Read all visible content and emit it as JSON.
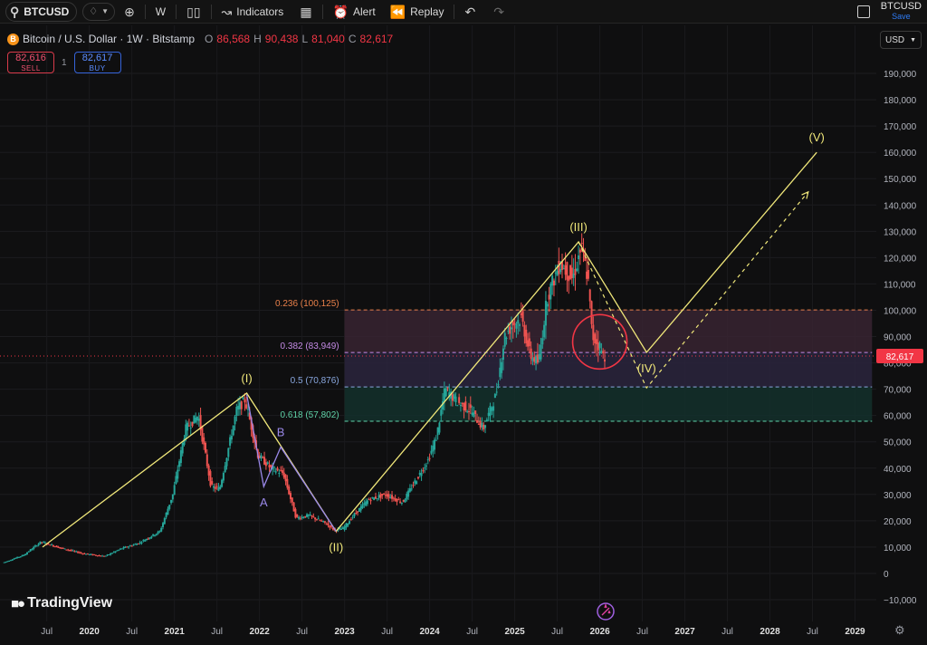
{
  "toolbar": {
    "symbol": "BTCUSD",
    "interval": "W",
    "indicators_label": "Indicators",
    "alert_label": "Alert",
    "replay_label": "Replay",
    "layout_name": "BTCUSD",
    "save_label": "Save"
  },
  "legend": {
    "title": "Bitcoin / U.S. Dollar · 1W · Bitstamp",
    "o_key": "O",
    "o_val": "86,568",
    "h_key": "H",
    "h_val": "90,438",
    "l_key": "L",
    "l_val": "81,040",
    "c_key": "C",
    "c_val": "82,617"
  },
  "trade": {
    "sell_price": "82,616",
    "sell_label": "SELL",
    "qty": "1",
    "buy_price": "82,617",
    "buy_label": "BUY"
  },
  "currency": "USD",
  "watermark": "TradingView",
  "colors": {
    "up": "#26a69a",
    "down": "#ef5350",
    "wave": "#f0e77a",
    "last_price": "#f23645",
    "background": "#0f0f10"
  },
  "chart_data": {
    "type": "candlestick",
    "symbol": "BTCUSD",
    "interval": "1W",
    "ylim": [
      -10000,
      200000
    ],
    "y_ticks": [
      -10000,
      0,
      10000,
      20000,
      30000,
      40000,
      50000,
      60000,
      70000,
      80000,
      90000,
      100000,
      110000,
      120000,
      130000,
      140000,
      150000,
      160000,
      170000,
      180000,
      190000
    ],
    "y_tick_labels": [
      "−10,000",
      "0",
      "10,000",
      "20,000",
      "30,000",
      "40,000",
      "50,000",
      "60,000",
      "70,000",
      "80,000",
      "90,000",
      "100,000",
      "110,000",
      "120,000",
      "130,000",
      "140,000",
      "150,000",
      "160,000",
      "170,000",
      "180,000",
      "190,000"
    ],
    "x_ticks": [
      {
        "t": 2019.5,
        "label": "Jul",
        "year": false
      },
      {
        "t": 2020.0,
        "label": "2020",
        "year": true
      },
      {
        "t": 2020.5,
        "label": "Jul",
        "year": false
      },
      {
        "t": 2021.0,
        "label": "2021",
        "year": true
      },
      {
        "t": 2021.5,
        "label": "Jul",
        "year": false
      },
      {
        "t": 2022.0,
        "label": "2022",
        "year": true
      },
      {
        "t": 2022.5,
        "label": "Jul",
        "year": false
      },
      {
        "t": 2023.0,
        "label": "2023",
        "year": true
      },
      {
        "t": 2023.5,
        "label": "Jul",
        "year": false
      },
      {
        "t": 2024.0,
        "label": "2024",
        "year": true
      },
      {
        "t": 2024.5,
        "label": "Jul",
        "year": false
      },
      {
        "t": 2025.0,
        "label": "2025",
        "year": true
      },
      {
        "t": 2025.5,
        "label": "Jul",
        "year": false
      },
      {
        "t": 2026.0,
        "label": "2026",
        "year": true
      },
      {
        "t": 2026.5,
        "label": "Jul",
        "year": false
      },
      {
        "t": 2027.0,
        "label": "2027",
        "year": true
      },
      {
        "t": 2027.5,
        "label": "Jul",
        "year": false
      },
      {
        "t": 2028.0,
        "label": "2028",
        "year": true
      },
      {
        "t": 2028.5,
        "label": "Jul",
        "year": false
      },
      {
        "t": 2029.0,
        "label": "2029",
        "year": true
      }
    ],
    "last_price": 82617,
    "last_price_label": "82,617",
    "price_path": [
      [
        2019.0,
        4000
      ],
      [
        2019.25,
        7000
      ],
      [
        2019.45,
        12000
      ],
      [
        2019.7,
        9500
      ],
      [
        2019.95,
        7500
      ],
      [
        2020.2,
        6500
      ],
      [
        2020.4,
        9500
      ],
      [
        2020.6,
        11500
      ],
      [
        2020.85,
        16000
      ],
      [
        2021.0,
        30000
      ],
      [
        2021.15,
        55000
      ],
      [
        2021.3,
        60000
      ],
      [
        2021.45,
        33000
      ],
      [
        2021.55,
        32000
      ],
      [
        2021.75,
        62000
      ],
      [
        2021.85,
        66000
      ],
      [
        2022.0,
        45000
      ],
      [
        2022.15,
        40000
      ],
      [
        2022.3,
        38000
      ],
      [
        2022.45,
        21000
      ],
      [
        2022.6,
        22000
      ],
      [
        2022.8,
        19000
      ],
      [
        2022.9,
        16500
      ],
      [
        2023.0,
        17000
      ],
      [
        2023.15,
        23000
      ],
      [
        2023.3,
        28000
      ],
      [
        2023.5,
        30000
      ],
      [
        2023.7,
        27000
      ],
      [
        2023.85,
        35000
      ],
      [
        2024.0,
        43000
      ],
      [
        2024.1,
        52000
      ],
      [
        2024.2,
        70000
      ],
      [
        2024.35,
        65000
      ],
      [
        2024.5,
        62000
      ],
      [
        2024.65,
        55000
      ],
      [
        2024.8,
        68000
      ],
      [
        2024.9,
        90000
      ],
      [
        2025.0,
        95000
      ],
      [
        2025.1,
        97000
      ],
      [
        2025.2,
        83000
      ],
      [
        2025.3,
        80000
      ],
      [
        2025.4,
        105000
      ],
      [
        2025.55,
        118000
      ],
      [
        2025.7,
        112000
      ],
      [
        2025.8,
        124000
      ],
      [
        2025.88,
        112000
      ],
      [
        2025.93,
        90000
      ],
      [
        2025.98,
        88000
      ],
      [
        2026.02,
        86000
      ],
      [
        2026.06,
        82617
      ]
    ],
    "fib_levels": [
      {
        "ratio": 0.236,
        "value": 100125,
        "label": "0.236 (100,125)",
        "color": "#e8804a"
      },
      {
        "ratio": 0.382,
        "value": 83949,
        "label": "0.382 (83,949)",
        "color": "#c58be6"
      },
      {
        "ratio": 0.5,
        "value": 70876,
        "label": "0.5 (70,876)",
        "color": "#8aa8e0"
      },
      {
        "ratio": 0.618,
        "value": 57802,
        "label": "0.618 (57,802)",
        "color": "#5fd3a8"
      }
    ],
    "fib_range": {
      "x_start": 2023.0,
      "x_end": 2029.2
    },
    "wave_path": [
      [
        2019.45,
        10000
      ],
      [
        2021.85,
        68500
      ],
      [
        2022.9,
        16000
      ],
      [
        2025.75,
        126000
      ],
      [
        2026.55,
        84000
      ],
      [
        2028.55,
        160000
      ]
    ],
    "wave_labels": [
      {
        "label": "(I)",
        "t": 2021.85,
        "v": 68500,
        "color": "#f0e77a",
        "pos": "above"
      },
      {
        "label": "(II)",
        "t": 2022.9,
        "v": 16000,
        "color": "#f0e77a",
        "pos": "below"
      },
      {
        "label": "(III)",
        "t": 2025.75,
        "v": 126000,
        "color": "#f0e77a",
        "pos": "above"
      },
      {
        "label": "(IV)",
        "t": 2026.55,
        "v": 84000,
        "color": "#f0e77a",
        "pos": "below"
      },
      {
        "label": "(V)",
        "t": 2028.55,
        "v": 160000,
        "color": "#f0e77a",
        "pos": "above"
      }
    ],
    "alt_path": [
      [
        2025.75,
        126000
      ],
      [
        2026.55,
        70500
      ],
      [
        2028.45,
        145000
      ]
    ],
    "abc_path": [
      [
        2021.85,
        68000
      ],
      [
        2022.05,
        33000
      ],
      [
        2022.25,
        48000
      ],
      [
        2022.9,
        16000
      ]
    ],
    "abc_labels": [
      {
        "label": "A",
        "t": 2022.05,
        "v": 33000,
        "color": "#9a88e8",
        "pos": "below"
      },
      {
        "label": "B",
        "t": 2022.25,
        "v": 48000,
        "color": "#9a88e8",
        "pos": "above"
      }
    ],
    "highlight_circle": {
      "t": 2026.0,
      "v": 88000,
      "color": "#f23645"
    }
  }
}
